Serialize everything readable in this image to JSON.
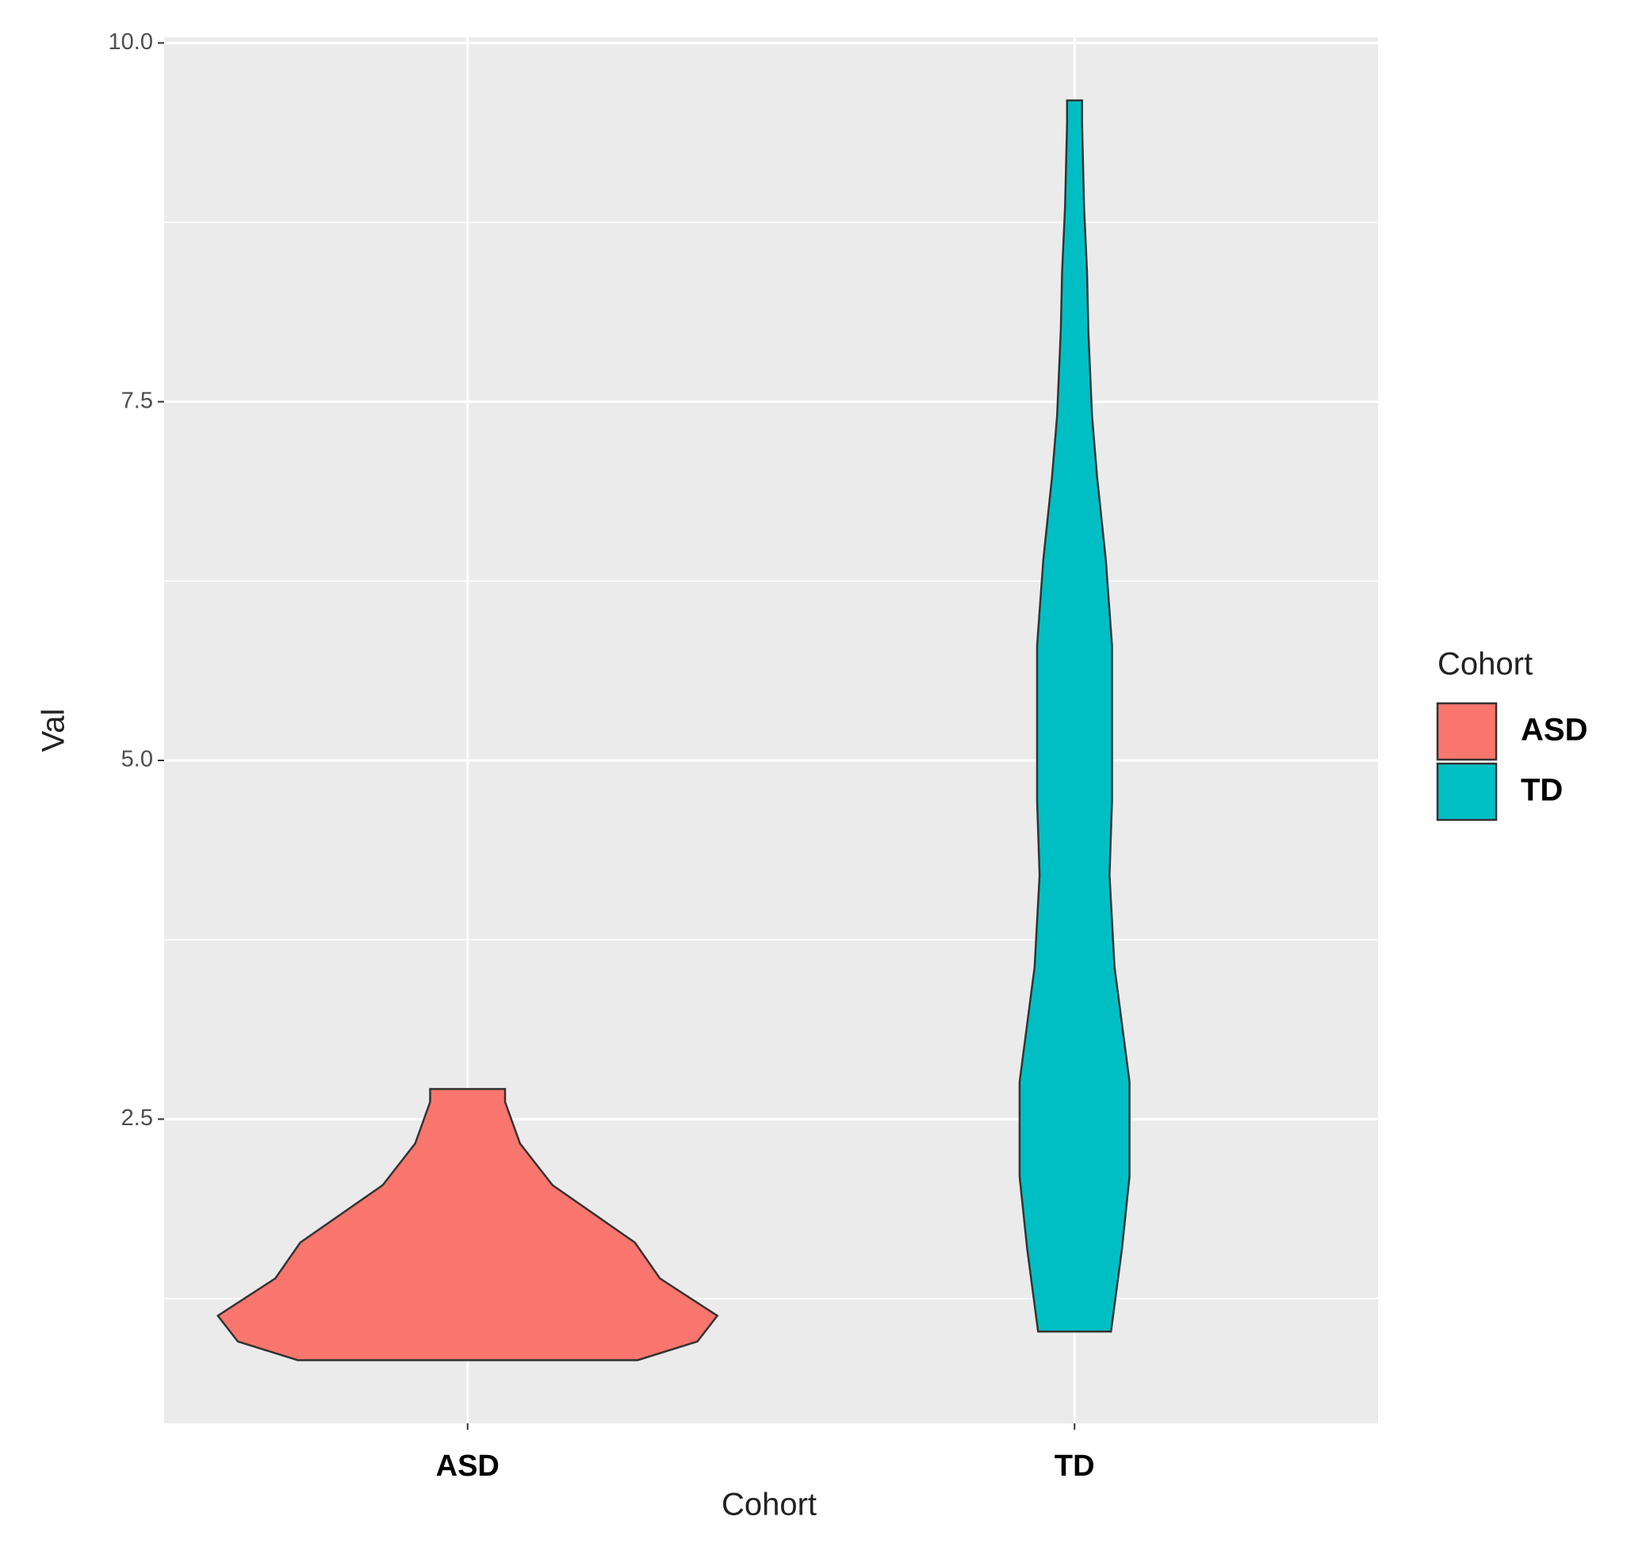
{
  "chart_data": {
    "type": "violin",
    "x_label": "Cohort",
    "y_label": "Val",
    "legend_title": "Cohort",
    "legend_position": "right",
    "grid": true,
    "categories": [
      "ASD",
      "TD"
    ],
    "ylim": [
      0.38,
      10.04
    ],
    "yticks": [
      {
        "value": 2.5,
        "label": "2.5"
      },
      {
        "value": 5,
        "label": "5.0"
      },
      {
        "value": 7.5,
        "label": "7.5"
      },
      {
        "value": 10,
        "label": "10.0"
      }
    ],
    "minor_yticks": [
      1.25,
      3.75,
      6.25,
      8.75
    ],
    "series": [
      {
        "name": "ASD",
        "color": "#f8766d",
        "y": [
          0.82,
          0.95,
          1.13,
          1.39,
          1.64,
          2.04,
          2.33,
          2.62,
          2.71
        ],
        "widths": [
          0.68,
          0.92,
          1.0,
          0.77,
          0.67,
          0.34,
          0.21,
          0.15,
          0.15
        ]
      },
      {
        "name": "TD",
        "color": "#00bfc4",
        "y": [
          1.02,
          1.6,
          2.1,
          2.76,
          3.56,
          4.2,
          4.72,
          5.8,
          6.4,
          6.98,
          7.4,
          8.0,
          8.4,
          8.86,
          9.44,
          9.6
        ],
        "widths": [
          0.146,
          0.19,
          0.22,
          0.22,
          0.16,
          0.14,
          0.15,
          0.15,
          0.125,
          0.09,
          0.07,
          0.055,
          0.05,
          0.038,
          0.03,
          0.03
        ]
      }
    ]
  }
}
